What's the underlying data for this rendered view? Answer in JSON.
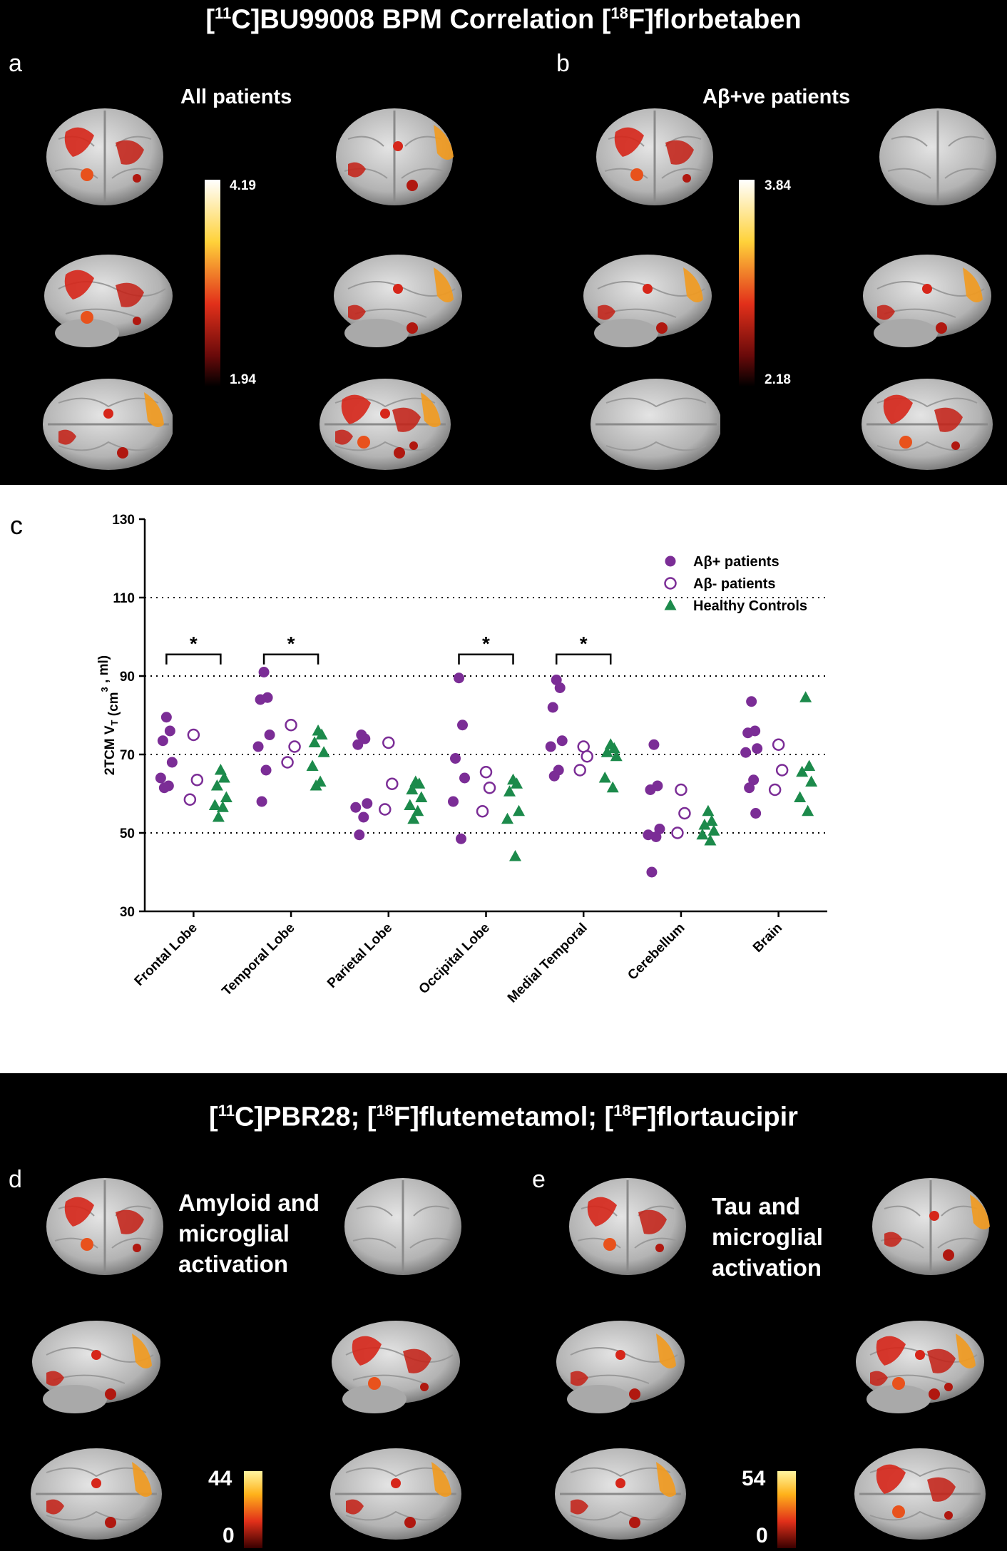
{
  "top": {
    "title_pre": "[",
    "title_sup1": "11",
    "title_mid": "C]BU99008  BPM Correlation [",
    "title_sup2": "18",
    "title_post": "F]florbetaben",
    "panel_a": {
      "letter": "a",
      "label": "All patients",
      "scale_max": "4.19",
      "scale_min": "1.94"
    },
    "panel_b": {
      "letter": "b",
      "label": "Aβ+ve patients",
      "scale_max": "3.84",
      "scale_min": "2.18"
    }
  },
  "bottom": {
    "title_part1": "[",
    "title_sup1": "11",
    "title_part2": "C]PBR28; [",
    "title_sup2": "18",
    "title_part3": "F]flutemetamol; [",
    "title_sup3": "18",
    "title_part4": "F]flortaucipir",
    "panel_d": {
      "letter": "d",
      "label_lines": [
        "Amyloid and",
        "microglial",
        "activation"
      ],
      "scale_max": "44",
      "scale_min": "0"
    },
    "panel_e": {
      "letter": "e",
      "label_lines": [
        "Tau and",
        "microglial",
        "activation"
      ],
      "scale_max": "54",
      "scale_min": "0"
    }
  },
  "chart_data": {
    "panel_letter": "c",
    "type": "scatter",
    "ylabel_main": "2TCM V",
    "ylabel_sub": "T",
    "ylabel_rest": " (cm",
    "ylabel_sup": "3",
    "ylabel_end": " , ml)",
    "ylim": [
      30,
      130
    ],
    "yticks": [
      30,
      50,
      70,
      90,
      110,
      130
    ],
    "gridlines": [
      50,
      70,
      90,
      110
    ],
    "categories": [
      "Frontal Lobe",
      "Temporal Lobe",
      "Parietal Lobe",
      "Occipital Lobe",
      "Medial Temporal",
      "Cerebellum",
      "Brain"
    ],
    "significance": [
      {
        "category": "Frontal Lobe",
        "label": "*"
      },
      {
        "category": "Temporal Lobe",
        "label": "*"
      },
      {
        "category": "Occipital Lobe",
        "label": "*"
      },
      {
        "category": "Medial Temporal",
        "label": "*"
      }
    ],
    "legend_position": "top-right",
    "series": [
      {
        "name": "Aβ+ patients",
        "marker": "filled-circle",
        "color": "#7b2d96",
        "values": [
          [
            79.5,
            76,
            73.5,
            68,
            64,
            62,
            61.5
          ],
          [
            91,
            84.5,
            84,
            75,
            72,
            66,
            58
          ],
          [
            75,
            74,
            72.5,
            57.5,
            56.5,
            54,
            49.5
          ],
          [
            89.5,
            77.5,
            69,
            64,
            58,
            48.5
          ],
          [
            89,
            87,
            82,
            73.5,
            72,
            66,
            64.5
          ],
          [
            72.5,
            62,
            61,
            51,
            49.5,
            49,
            40
          ],
          [
            83.5,
            76,
            75.5,
            71.5,
            70.5,
            63.5,
            61.5,
            55
          ]
        ]
      },
      {
        "name": "Aβ- patients",
        "marker": "open-circle",
        "color": "#7b2d96",
        "values": [
          [
            75,
            63.5,
            58.5
          ],
          [
            77.5,
            72,
            68
          ],
          [
            73,
            62.5,
            56
          ],
          [
            65.5,
            61.5,
            55.5
          ],
          [
            72,
            69.5,
            66
          ],
          [
            61,
            55,
            50
          ],
          [
            72.5,
            66,
            61
          ]
        ]
      },
      {
        "name": "Healthy Controls",
        "marker": "triangle",
        "color": "#1c8a4b",
        "values": [
          [
            66,
            64,
            62,
            59,
            57,
            56.5,
            54
          ],
          [
            76,
            75,
            73,
            70.5,
            67,
            63,
            62
          ],
          [
            63,
            62.5,
            61,
            59,
            57,
            55.5,
            53.5
          ],
          [
            63.5,
            62.5,
            60.5,
            55.5,
            53.5,
            44
          ],
          [
            72.5,
            71.5,
            70.5,
            69.5,
            64,
            61.5
          ],
          [
            55.5,
            53,
            52,
            50.5,
            49.5,
            48
          ],
          [
            84.5,
            67,
            65.5,
            63,
            59,
            55.5
          ]
        ]
      }
    ]
  }
}
